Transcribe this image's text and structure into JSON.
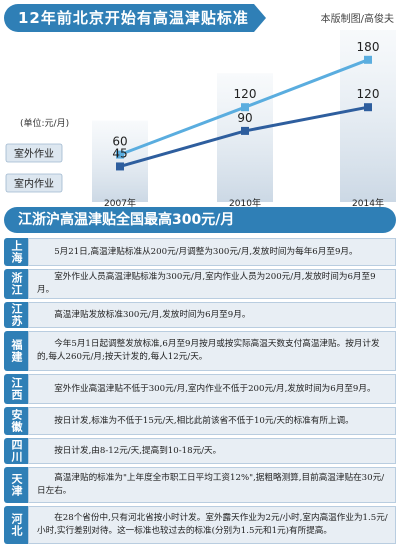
{
  "header": {
    "title": "12年前北京开始有高温津贴标准",
    "credit": "本版制图/高俊夫"
  },
  "chart_data": {
    "type": "line",
    "unit_label": "(单位:元/月)",
    "x": [
      "2007年",
      "2010年",
      "2014年"
    ],
    "series": [
      {
        "name": "室外作业",
        "values": [
          60,
          120,
          180
        ],
        "color": "#5aaddf"
      },
      {
        "name": "室内作业",
        "values": [
          45,
          90,
          120
        ],
        "color": "#2e5e9e"
      }
    ],
    "ylim": [
      0,
      200
    ],
    "grid": false
  },
  "section2": {
    "title": "江浙沪高温津贴全国最高300元/月"
  },
  "regions": [
    {
      "name": "上海",
      "text": "5月21日,高温津贴标准从200元/月调整为300元/月,发放时间为每年6月至9月。"
    },
    {
      "name": "浙江",
      "text": "室外作业人员高温津贴标准为300元/月,室内作业人员为200元/月,发放时间为6月至9月。"
    },
    {
      "name": "江苏",
      "text": "高温津贴发放标准300元/月,发放时间为6月至9月。"
    },
    {
      "name": "福建",
      "text": "今年5月1日起调整发放标准,6月至9月按月或按实际高温天数支付高温津贴。按月计发的,每人260元/月;按天计发的,每人12元/天。"
    },
    {
      "name": "江西",
      "text": "室外作业高温津贴不低于300元/月,室内作业不低于200元/月,发放时间为6月至9月。"
    },
    {
      "name": "安徽",
      "text": "按日计发,标准为不低于15元/天,相比此前该省不低于10元/天的标准有所上调。"
    },
    {
      "name": "四川",
      "text": "按日计发,由8-12元/天,提高到10-18元/天。"
    },
    {
      "name": "天津",
      "text": "高温津贴的标准为\"上年度全市职工日平均工资12%\",据粗略测算,目前高温津贴在30元/日左右。"
    },
    {
      "name": "河北",
      "text": "在28个省份中,只有河北省按小时计发。室外露天作业为2元/小时,室内高温作业为1.5元/小时,实行差别对待。这一标准也较过去的标准(分别为1.5元和1元)有所提高。"
    }
  ]
}
